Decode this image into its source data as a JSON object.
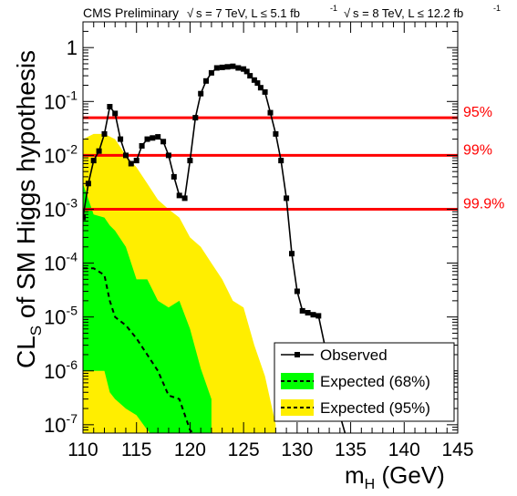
{
  "chart_data": {
    "type": "line",
    "header": {
      "left": "CMS Preliminary",
      "lumi7": "s = 7 TeV, L ≤ 5.1 fb",
      "lumi8": "s = 8 TeV, L ≤ 12.2 fb",
      "lumi_sup": "-1"
    },
    "xlabel": "m",
    "xlabel_sub": "H",
    "xlabel_unit": " (GeV)",
    "ylabel_main": "CL",
    "ylabel_sub": "S",
    "ylabel_rest": " of SM Higgs hypothesis",
    "xlim": [
      110,
      145
    ],
    "ylim": [
      7e-08,
      3
    ],
    "y_scale": "log",
    "x_ticks": [
      110,
      115,
      120,
      125,
      130,
      135,
      140,
      145
    ],
    "y_ticks": [
      {
        "value": 1,
        "base": "1",
        "exp": ""
      },
      {
        "value": 0.1,
        "base": "10",
        "exp": "-1"
      },
      {
        "value": 0.01,
        "base": "10",
        "exp": "-2"
      },
      {
        "value": 0.001,
        "base": "10",
        "exp": "-3"
      },
      {
        "value": 0.0001,
        "base": "10",
        "exp": "-4"
      },
      {
        "value": 1e-05,
        "base": "10",
        "exp": "-5"
      },
      {
        "value": 1e-06,
        "base": "10",
        "exp": "-6"
      },
      {
        "value": 1e-07,
        "base": "10",
        "exp": "-7"
      }
    ],
    "cl_lines": [
      {
        "label": "95%",
        "value": 0.05
      },
      {
        "label": "99%",
        "value": 0.01
      },
      {
        "label": "99.9%",
        "value": 0.001
      }
    ],
    "series": [
      {
        "name": "Observed",
        "x": [
          110,
          110.5,
          111,
          111.5,
          112,
          112.5,
          113,
          113.5,
          114,
          114.5,
          115,
          115.5,
          116,
          116.5,
          117,
          117.5,
          118,
          118.5,
          119,
          119.5,
          120,
          120.5,
          121,
          121.5,
          122,
          122.5,
          123,
          123.5,
          124,
          124.5,
          125,
          125.3,
          125.6,
          126,
          126.3,
          126.6,
          127,
          127.5,
          128,
          128.5,
          129,
          129.5,
          130,
          130.5,
          131,
          131.5,
          132,
          133,
          134,
          135
        ],
        "y": [
          0.0007,
          0.003,
          0.008,
          0.012,
          0.025,
          0.08,
          0.06,
          0.02,
          0.01,
          0.007,
          0.008,
          0.015,
          0.02,
          0.021,
          0.022,
          0.018,
          0.01,
          0.004,
          0.0018,
          0.0016,
          0.008,
          0.05,
          0.14,
          0.24,
          0.34,
          0.42,
          0.43,
          0.44,
          0.45,
          0.42,
          0.4,
          0.36,
          0.3,
          0.25,
          0.22,
          0.18,
          0.15,
          0.062,
          0.025,
          0.008,
          0.0016,
          0.00015,
          3e-05,
          1.3e-05,
          1.2e-05,
          1.1e-05,
          1.05e-05,
          1.2e-06,
          1.5e-07,
          3e-08
        ]
      },
      {
        "name": "Expected (68%)",
        "x": [
          110,
          111,
          112,
          112.5,
          113,
          114,
          115,
          116,
          117,
          118,
          119,
          120,
          121,
          122
        ],
        "y": [
          8e-05,
          8e-05,
          6e-05,
          2e-05,
          1e-05,
          7e-06,
          4e-06,
          2e-06,
          1e-06,
          3.5e-07,
          3e-07,
          8e-08,
          5e-08,
          3e-08
        ],
        "band68": {
          "hi": [
            0.003,
            0.0008,
            0.0007,
            0.0005,
            0.0004,
            0.0002,
            5e-05,
            5e-05,
            2e-05,
            1.5e-05,
            2e-05,
            6e-06,
            1.1e-06,
            3e-07
          ],
          "lo": [
            1e-06,
            1e-06,
            1e-06,
            4e-07,
            3e-07,
            2e-07,
            1.5e-07,
            8e-08,
            5e-08,
            3e-08,
            2e-08,
            1e-08,
            1e-08,
            1e-08
          ]
        }
      },
      {
        "name": "Expected (95%)",
        "x": [
          110,
          111,
          112,
          113,
          114,
          115,
          116,
          117,
          118,
          119,
          120,
          121,
          122,
          123,
          124,
          125,
          126,
          127,
          128
        ],
        "band95": {
          "hi": [
            0.02,
            0.025,
            0.025,
            0.02,
            0.01,
            0.006,
            0.003,
            0.0015,
            0.001,
            0.0007,
            0.0003,
            0.0002,
            0.0001,
            5e-05,
            2e-05,
            1.5e-05,
            3e-06,
            8e-07,
            1e-07
          ],
          "lo": [
            3e-08,
            3e-08,
            3e-08,
            3e-08,
            3e-08,
            3e-08,
            3e-08,
            3e-08,
            3e-08,
            3e-08,
            3e-08,
            3e-08,
            3e-08,
            3e-08,
            3e-08,
            3e-08,
            3e-08,
            3e-08,
            3e-08
          ]
        }
      }
    ],
    "legend": {
      "placement": "bottom-right",
      "entries": [
        {
          "label": "Observed",
          "style": "observed"
        },
        {
          "label": "Expected (68%)",
          "style": "band68"
        },
        {
          "label": "Expected (95%)",
          "style": "band95"
        }
      ]
    },
    "colors": {
      "band95": "#ffee00",
      "band68": "#00ff00",
      "cl_line": "#ff0000",
      "observed": "#000000"
    }
  }
}
